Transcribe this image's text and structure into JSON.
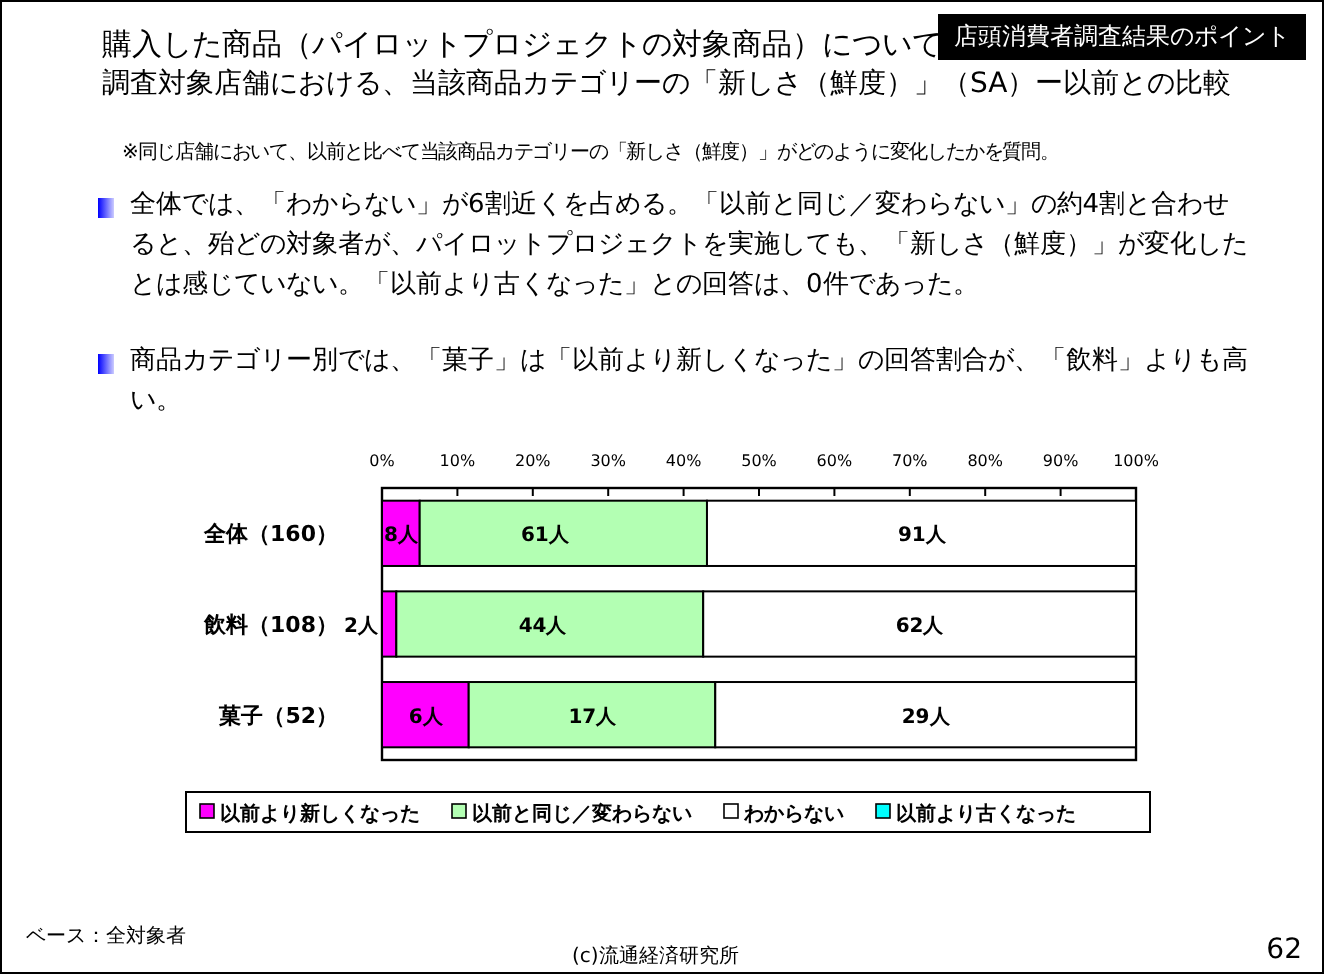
{
  "chart_data": {
    "type": "bar",
    "orientation": "horizontal",
    "stacked": true,
    "title": "購入した商品（パイロットプロジェクトの対象商品）について",
    "subtitle": "調査対象店舗における、当該商品カテゴリーの「新しさ（鮮度）」（SA）ー以前との比較",
    "categories": [
      "全体（160）",
      "飲料（108）",
      "菓子（52）"
    ],
    "series": [
      {
        "name": "以前より新しくなった",
        "color": "#ff00ff",
        "values": [
          5.0,
          1.9,
          11.5
        ]
      },
      {
        "name": "以前と同じ／変わらない",
        "color": "#b3ffb3",
        "values": [
          38.1,
          40.7,
          32.7
        ]
      },
      {
        "name": "わからない",
        "color": "#ffffff",
        "values": [
          56.9,
          57.4,
          55.8
        ]
      },
      {
        "name": "以前より古くなった",
        "color": "#00ffff",
        "values": [
          0,
          0,
          0
        ]
      }
    ],
    "xlim": [
      0,
      100
    ],
    "xticks": [
      {
        "value": 0,
        "label": "0%"
      },
      {
        "value": 10,
        "label": "10%"
      },
      {
        "value": 20,
        "label": "20%"
      },
      {
        "value": 30,
        "label": "30%"
      },
      {
        "value": 40,
        "label": "40%"
      },
      {
        "value": 50,
        "label": "50%"
      },
      {
        "value": 60,
        "label": "60%"
      },
      {
        "value": 70,
        "label": "70%"
      },
      {
        "value": 80,
        "label": "80%"
      },
      {
        "value": 90,
        "label": "90%"
      },
      {
        "value": 100,
        "label": "100%"
      }
    ],
    "legend": "bottom",
    "annotations": [
      "店頭消費者調査結果のポイント",
      "※同じ店舗において、以前と比べて当該商品カテゴリーの「新しさ（鮮度）」がどのように変化したかを質問。",
      "全体では、「わからない」が6割近くを占める。「以前と同じ／変わらない」の約4割と合わせると、殆どの対象者が、パイロットプロジェクトを実施しても、「新しさ（鮮度）」が変化したとは感じていない。「以前より古くなった」との回答は、0件であった。",
      "商品カテゴリー別では、「菓子」は「以前より新しくなった」の回答割合が、「飲料」よりも高い。",
      "ベース：全対象者",
      "(c)流通経済研究所",
      "62",
      {
        "text": "8人",
        "x": 2.5,
        "y": "全体（160）"
      },
      {
        "text": "61人",
        "x": 21.6,
        "y": "全体（160）"
      },
      {
        "text": "91人",
        "x": 71.6,
        "y": "全体（160）"
      },
      {
        "text": "2人",
        "x": 1.0,
        "y": "飲料（108）"
      },
      {
        "text": "44人",
        "x": 21.3,
        "y": "飲料（108）"
      },
      {
        "text": "62人",
        "x": 71.3,
        "y": "飲料（108）"
      },
      {
        "text": "6人",
        "x": 5.8,
        "y": "菓子（52）"
      },
      {
        "text": "17人",
        "x": 27.9,
        "y": "菓子（52）"
      },
      {
        "text": "29人",
        "x": 72.1,
        "y": "菓子（52）"
      }
    ]
  }
}
